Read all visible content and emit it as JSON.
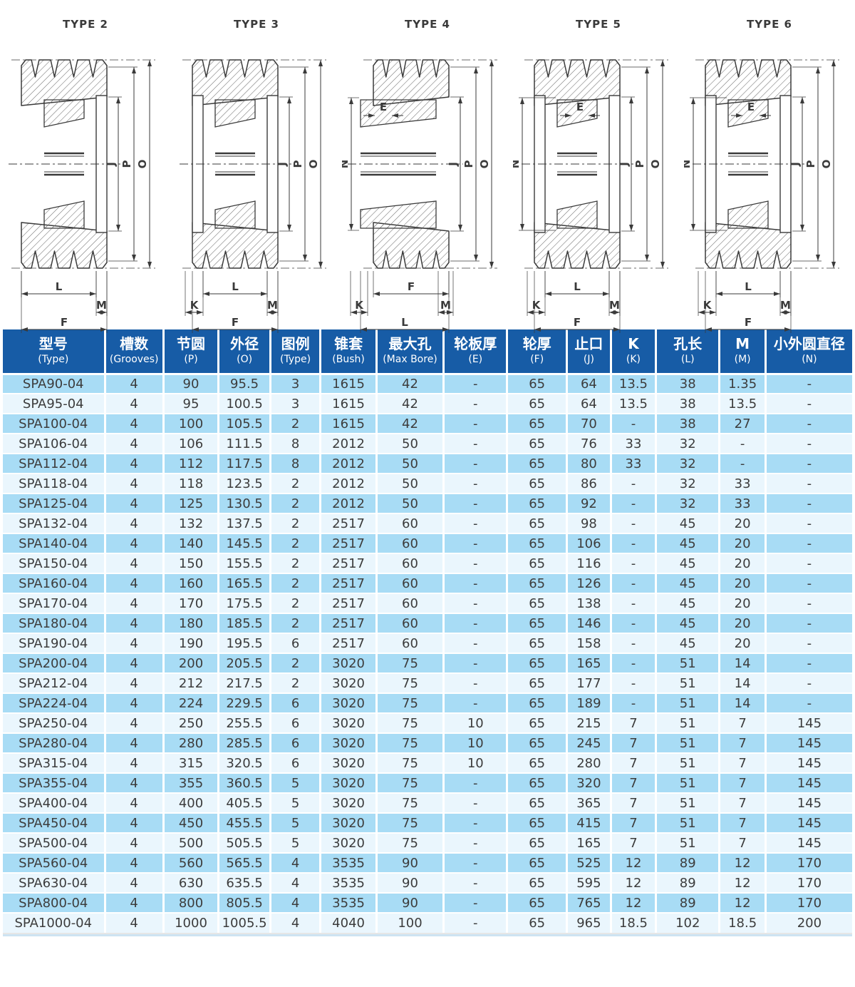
{
  "colors": {
    "header_bg": "#175ca6",
    "row_odd": "#a8dcf5",
    "row_even": "#eaf6fd",
    "cell_text": "#3c3c3c",
    "header_text": "#ffffff",
    "drawing_line": "#3a3a3a"
  },
  "diagrams": {
    "types": [
      {
        "title": "TYPE 2",
        "right_dims": [
          "J",
          "P",
          "O"
        ],
        "bottom_dims": [
          "L",
          "M",
          "F"
        ],
        "left_dims": [],
        "inner_dims": [],
        "plates": "right",
        "teeth_inset": 0
      },
      {
        "title": "TYPE 3",
        "right_dims": [
          "J",
          "P",
          "O"
        ],
        "bottom_dims": [
          "K",
          "L",
          "M",
          "F"
        ],
        "left_dims": [],
        "inner_dims": [],
        "plates": "both",
        "teeth_inset": 0
      },
      {
        "title": "TYPE 4",
        "right_dims": [
          "J",
          "P",
          "O"
        ],
        "bottom_dims": [
          "K",
          "F",
          "M",
          "L"
        ],
        "left_dims": [
          "N"
        ],
        "inner_dims": [
          "E"
        ],
        "plates": "none",
        "teeth_inset": 14
      },
      {
        "title": "TYPE 5",
        "right_dims": [
          "J",
          "P",
          "O"
        ],
        "bottom_dims": [
          "K",
          "L",
          "M",
          "F"
        ],
        "left_dims": [
          "N"
        ],
        "inner_dims": [
          "E"
        ],
        "plates": "both",
        "teeth_inset": 0
      },
      {
        "title": "TYPE 6",
        "right_dims": [
          "J",
          "P",
          "O"
        ],
        "bottom_dims": [
          "K",
          "L",
          "M",
          "F"
        ],
        "left_dims": [
          "N"
        ],
        "inner_dims": [
          "E"
        ],
        "plates": "both",
        "teeth_inset": 0
      }
    ]
  },
  "table": {
    "columns": [
      {
        "zh": "型号",
        "en": "(Type)",
        "width": 12.0
      },
      {
        "zh": "槽数",
        "en": "(Grooves)",
        "width": 6.9
      },
      {
        "zh": "节圆",
        "en": "(P)",
        "width": 6.5
      },
      {
        "zh": "外径",
        "en": "(O)",
        "width": 6.1
      },
      {
        "zh": "图例",
        "en": "(Type)",
        "width": 5.9
      },
      {
        "zh": "锥套",
        "en": "(Bush)",
        "width": 6.6
      },
      {
        "zh": "最大孔",
        "en": "(Max Bore)",
        "width": 7.9
      },
      {
        "zh": "轮板厚",
        "en": "(E)",
        "width": 7.5
      },
      {
        "zh": "轮厚",
        "en": "(F)",
        "width": 7.0
      },
      {
        "zh": "止口",
        "en": "(J)",
        "width": 5.2
      },
      {
        "zh": "K",
        "en": "(K)",
        "width": 5.3
      },
      {
        "zh": "孔长",
        "en": "(L)",
        "width": 7.5
      },
      {
        "zh": "M",
        "en": "(M)",
        "width": 5.4
      },
      {
        "zh": "小外圆直径",
        "en": "(N)",
        "width": 10.2
      }
    ],
    "rows": [
      [
        "SPA90-04",
        "4",
        "90",
        "95.5",
        "3",
        "1615",
        "42",
        "-",
        "65",
        "64",
        "13.5",
        "38",
        "1.35",
        "-"
      ],
      [
        "SPA95-04",
        "4",
        "95",
        "100.5",
        "3",
        "1615",
        "42",
        "-",
        "65",
        "64",
        "13.5",
        "38",
        "13.5",
        "-"
      ],
      [
        "SPA100-04",
        "4",
        "100",
        "105.5",
        "2",
        "1615",
        "42",
        "-",
        "65",
        "70",
        "-",
        "38",
        "27",
        "-"
      ],
      [
        "SPA106-04",
        "4",
        "106",
        "111.5",
        "8",
        "2012",
        "50",
        "-",
        "65",
        "76",
        "33",
        "32",
        "-",
        "-"
      ],
      [
        "SPA112-04",
        "4",
        "112",
        "117.5",
        "8",
        "2012",
        "50",
        "-",
        "65",
        "80",
        "33",
        "32",
        "-",
        "-"
      ],
      [
        "SPA118-04",
        "4",
        "118",
        "123.5",
        "2",
        "2012",
        "50",
        "-",
        "65",
        "86",
        "-",
        "32",
        "33",
        "-"
      ],
      [
        "SPA125-04",
        "4",
        "125",
        "130.5",
        "2",
        "2012",
        "50",
        "-",
        "65",
        "92",
        "-",
        "32",
        "33",
        "-"
      ],
      [
        "SPA132-04",
        "4",
        "132",
        "137.5",
        "2",
        "2517",
        "60",
        "-",
        "65",
        "98",
        "-",
        "45",
        "20",
        "-"
      ],
      [
        "SPA140-04",
        "4",
        "140",
        "145.5",
        "2",
        "2517",
        "60",
        "-",
        "65",
        "106",
        "-",
        "45",
        "20",
        "-"
      ],
      [
        "SPA150-04",
        "4",
        "150",
        "155.5",
        "2",
        "2517",
        "60",
        "-",
        "65",
        "116",
        "-",
        "45",
        "20",
        "-"
      ],
      [
        "SPA160-04",
        "4",
        "160",
        "165.5",
        "2",
        "2517",
        "60",
        "-",
        "65",
        "126",
        "-",
        "45",
        "20",
        "-"
      ],
      [
        "SPA170-04",
        "4",
        "170",
        "175.5",
        "2",
        "2517",
        "60",
        "-",
        "65",
        "138",
        "-",
        "45",
        "20",
        "-"
      ],
      [
        "SPA180-04",
        "4",
        "180",
        "185.5",
        "2",
        "2517",
        "60",
        "-",
        "65",
        "146",
        "-",
        "45",
        "20",
        "-"
      ],
      [
        "SPA190-04",
        "4",
        "190",
        "195.5",
        "6",
        "2517",
        "60",
        "-",
        "65",
        "158",
        "-",
        "45",
        "20",
        "-"
      ],
      [
        "SPA200-04",
        "4",
        "200",
        "205.5",
        "2",
        "3020",
        "75",
        "-",
        "65",
        "165",
        "-",
        "51",
        "14",
        "-"
      ],
      [
        "SPA212-04",
        "4",
        "212",
        "217.5",
        "2",
        "3020",
        "75",
        "-",
        "65",
        "177",
        "-",
        "51",
        "14",
        "-"
      ],
      [
        "SPA224-04",
        "4",
        "224",
        "229.5",
        "6",
        "3020",
        "75",
        "-",
        "65",
        "189",
        "-",
        "51",
        "14",
        "-"
      ],
      [
        "SPA250-04",
        "4",
        "250",
        "255.5",
        "6",
        "3020",
        "75",
        "10",
        "65",
        "215",
        "7",
        "51",
        "7",
        "145"
      ],
      [
        "SPA280-04",
        "4",
        "280",
        "285.5",
        "6",
        "3020",
        "75",
        "10",
        "65",
        "245",
        "7",
        "51",
        "7",
        "145"
      ],
      [
        "SPA315-04",
        "4",
        "315",
        "320.5",
        "6",
        "3020",
        "75",
        "10",
        "65",
        "280",
        "7",
        "51",
        "7",
        "145"
      ],
      [
        "SPA355-04",
        "4",
        "355",
        "360.5",
        "5",
        "3020",
        "75",
        "-",
        "65",
        "320",
        "7",
        "51",
        "7",
        "145"
      ],
      [
        "SPA400-04",
        "4",
        "400",
        "405.5",
        "5",
        "3020",
        "75",
        "-",
        "65",
        "365",
        "7",
        "51",
        "7",
        "145"
      ],
      [
        "SPA450-04",
        "4",
        "450",
        "455.5",
        "5",
        "3020",
        "75",
        "-",
        "65",
        "415",
        "7",
        "51",
        "7",
        "145"
      ],
      [
        "SPA500-04",
        "4",
        "500",
        "505.5",
        "5",
        "3020",
        "75",
        "-",
        "65",
        "165",
        "7",
        "51",
        "7",
        "145"
      ],
      [
        "SPA560-04",
        "4",
        "560",
        "565.5",
        "4",
        "3535",
        "90",
        "-",
        "65",
        "525",
        "12",
        "89",
        "12",
        "170"
      ],
      [
        "SPA630-04",
        "4",
        "630",
        "635.5",
        "4",
        "3535",
        "90",
        "-",
        "65",
        "595",
        "12",
        "89",
        "12",
        "170"
      ],
      [
        "SPA800-04",
        "4",
        "800",
        "805.5",
        "4",
        "3535",
        "90",
        "-",
        "65",
        "765",
        "12",
        "89",
        "12",
        "170"
      ],
      [
        "SPA1000-04",
        "4",
        "1000",
        "1005.5",
        "4",
        "4040",
        "100",
        "-",
        "65",
        "965",
        "18.5",
        "102",
        "18.5",
        "200"
      ]
    ]
  }
}
